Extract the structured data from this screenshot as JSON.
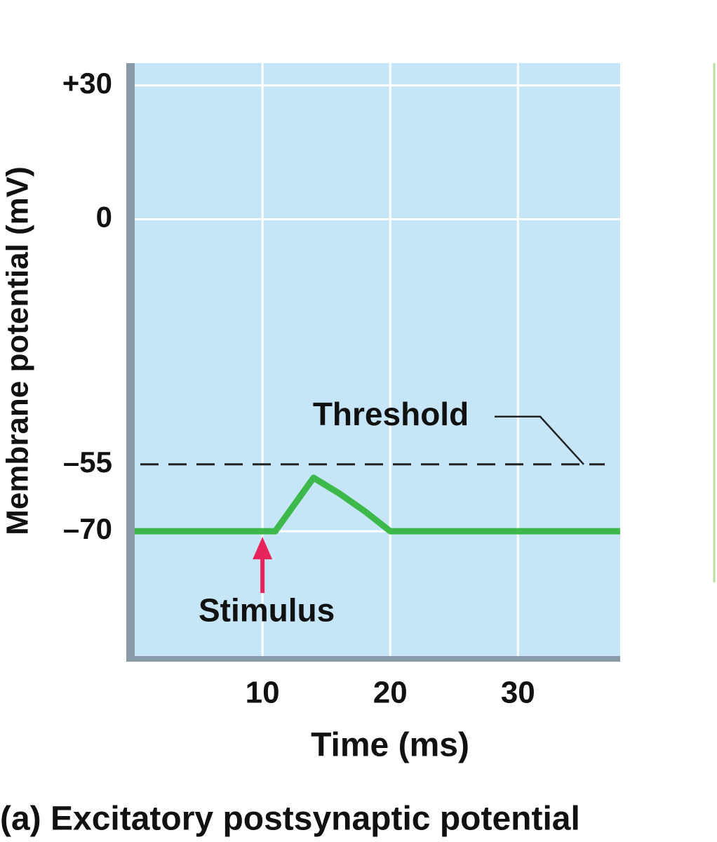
{
  "chart_data": {
    "type": "line",
    "title": "(a) Excitatory postsynaptic potential",
    "x_label": "Time (ms)",
    "y_label": "Membrane potential (mV)",
    "x": [
      0,
      11,
      14,
      16,
      18,
      20,
      38
    ],
    "series": [
      {
        "name": "EPSP",
        "color": "#3cb94a",
        "values": [
          -70,
          -70,
          -58,
          -61.5,
          -65.5,
          -70,
          -70
        ]
      }
    ],
    "xlim": [
      0,
      38
    ],
    "xticks": [
      10,
      20,
      30
    ],
    "ylim": [
      -98,
      35
    ],
    "yticks": [
      {
        "value": 30,
        "label": "+30"
      },
      0,
      {
        "value": -55,
        "label": "–55"
      },
      {
        "value": -70,
        "label": "–70"
      }
    ],
    "grid": true,
    "threshold": -55,
    "threshold_label": "Threshold",
    "stimulus_x": 10,
    "stimulus_label": "Stimulus"
  }
}
